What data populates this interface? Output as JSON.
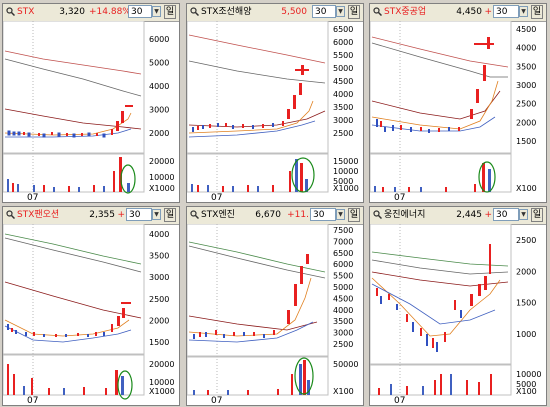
{
  "panels": [
    {
      "name": "STX",
      "price": "3,320",
      "change": "+14.88%",
      "period": "30",
      "unit": "일",
      "price_ticks": [
        "6000",
        "5000",
        "4000",
        "3000",
        "2000"
      ],
      "volume_ticks": [
        "20000",
        "10000"
      ],
      "volume_unit": "X1000",
      "date_label": "07",
      "volume_circled": true
    },
    {
      "name": "STX조선해양",
      "price": "5,500",
      "change": "",
      "period": "30",
      "unit": "일",
      "price_ticks": [
        "6500",
        "6000",
        "5500",
        "5000",
        "4500",
        "4000",
        "3500",
        "3000",
        "2500"
      ],
      "volume_ticks": [
        "15000",
        "10000",
        "5000"
      ],
      "volume_unit": "X1000",
      "date_label": "07",
      "volume_circled": true
    },
    {
      "name": "STX중공업",
      "price": "4,450",
      "change": "+",
      "period": "30",
      "unit": "일",
      "price_ticks": [
        "4500",
        "4000",
        "3500",
        "3000",
        "2500",
        "2000",
        "1500"
      ],
      "volume_ticks": [],
      "volume_unit": "X100",
      "date_label": "07",
      "volume_circled": true
    },
    {
      "name": "STX팬오션",
      "price": "2,355",
      "change": "+",
      "period": "30",
      "unit": "일",
      "price_ticks": [
        "4000",
        "3500",
        "3000",
        "2500",
        "2000",
        "1500"
      ],
      "volume_ticks": [
        "20000",
        "10000"
      ],
      "volume_unit": "X1000",
      "date_label": "07",
      "volume_circled": true
    },
    {
      "name": "STX엔진",
      "price": "6,670",
      "change": "+11.",
      "period": "30",
      "unit": "일",
      "price_ticks": [
        "7500",
        "7000",
        "6500",
        "6000",
        "5500",
        "5000",
        "4500",
        "4000",
        "3500",
        "3000",
        "2500"
      ],
      "volume_ticks": [
        "50000"
      ],
      "volume_unit": "X100",
      "date_label": "07",
      "volume_circled": true
    },
    {
      "name": "웅진에너지",
      "price": "2,445",
      "change": "+",
      "period": "30",
      "unit": "일",
      "price_ticks": [
        "2500",
        "2000",
        "1500",
        "1000"
      ],
      "volume_ticks": [
        "10000",
        "5000"
      ],
      "volume_unit": "X100",
      "date_label": "07",
      "volume_circled": false
    }
  ]
}
